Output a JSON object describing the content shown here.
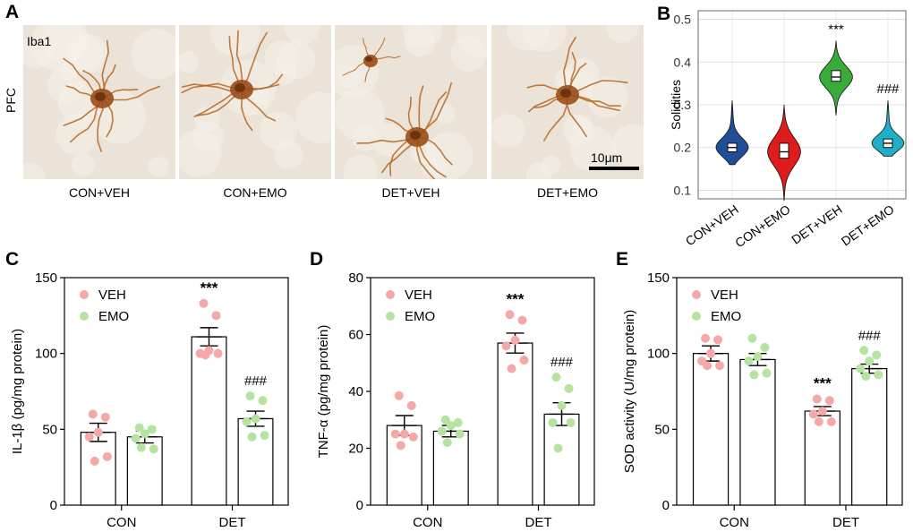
{
  "panelA": {
    "letter": "A",
    "stain": "Iba1",
    "region": "PFC",
    "scale_bar": "10μm",
    "images": [
      {
        "label": "CON+VEH"
      },
      {
        "label": "CON+EMO"
      },
      {
        "label": "DET+VEH"
      },
      {
        "label": "DET+EMO"
      }
    ]
  },
  "colors": {
    "veh": "#f4a9a8",
    "emo": "#b5e3a0",
    "violin": [
      "#1f4e96",
      "#e01b1b",
      "#3aab3a",
      "#1fb0c8"
    ],
    "stain": "#b5651d",
    "tissue": "#ebe3d8"
  },
  "chart_data": [
    {
      "panel": "B",
      "type": "violin",
      "title": "",
      "ylabel": "Solidities",
      "ylim": [
        0.08,
        0.52
      ],
      "yticks": [
        "0.1",
        "0.2",
        "0.3",
        "0.4",
        "0.5"
      ],
      "categories": [
        "CON+VEH",
        "CON+EMO",
        "DET+VEH",
        "DET+EMO"
      ],
      "min": [
        0.16,
        0.075,
        0.275,
        0.18
      ],
      "q1": [
        0.19,
        0.175,
        0.355,
        0.2
      ],
      "median": [
        0.2,
        0.19,
        0.365,
        0.21
      ],
      "q3": [
        0.21,
        0.21,
        0.38,
        0.22
      ],
      "max": [
        0.31,
        0.3,
        0.45,
        0.31
      ],
      "annotations": [
        "",
        "",
        "***",
        "###"
      ]
    },
    {
      "panel": "C",
      "type": "bar",
      "ylabel": "IL-1β (pg/mg protein)",
      "ylim": [
        0,
        150
      ],
      "yticks": [
        "0",
        "50",
        "100",
        "150"
      ],
      "categories": [
        "CON",
        "DET"
      ],
      "legend": [
        "VEH",
        "EMO"
      ],
      "series": [
        {
          "name": "VEH",
          "values": [
            48,
            111
          ],
          "sem": [
            6,
            6
          ],
          "points": [
            [
              60,
              58,
              48,
              45,
              32,
              29
            ],
            [
              133,
              125,
              102,
              100,
              100,
              99
            ]
          ]
        },
        {
          "name": "EMO",
          "values": [
            45,
            57
          ],
          "sem": [
            4,
            5
          ],
          "points": [
            [
              51,
              50,
              47,
              44,
              37,
              38
            ],
            [
              72,
              69,
              57,
              55,
              46,
              45
            ]
          ]
        }
      ],
      "annotations": [
        [
          "",
          ""
        ],
        [
          "***",
          "###"
        ]
      ]
    },
    {
      "panel": "D",
      "type": "bar",
      "ylabel": "TNF-α (pg/mg protein)",
      "ylim": [
        0,
        80
      ],
      "yticks": [
        "0",
        "20",
        "40",
        "60",
        "80"
      ],
      "categories": [
        "CON",
        "DET"
      ],
      "legend": [
        "VEH",
        "EMO"
      ],
      "series": [
        {
          "name": "VEH",
          "values": [
            28,
            57
          ],
          "sem": [
            3.5,
            3.5
          ],
          "points": [
            [
              38.5,
              35,
              25,
              25,
              24,
              21
            ],
            [
              67,
              65,
              58,
              56,
              51,
              48
            ]
          ]
        },
        {
          "name": "EMO",
          "values": [
            26,
            32
          ],
          "sem": [
            2,
            4
          ],
          "points": [
            [
              30,
              29,
              28,
              26,
              25,
              22
            ],
            [
              45,
              41,
              35,
              29,
              29,
              20
            ]
          ]
        }
      ],
      "annotations": [
        [
          "",
          ""
        ],
        [
          "***",
          "###"
        ]
      ]
    },
    {
      "panel": "E",
      "type": "bar",
      "ylabel": "SOD activity (U/mg protein)",
      "ylim": [
        0,
        150
      ],
      "yticks": [
        "0",
        "50",
        "100",
        "150"
      ],
      "categories": [
        "CON",
        "DET"
      ],
      "legend": [
        "VEH",
        "EMO"
      ],
      "series": [
        {
          "name": "VEH",
          "values": [
            100,
            62
          ],
          "sem": [
            5,
            3
          ],
          "points": [
            [
              110,
              109,
              100,
              95,
              92,
              92
            ],
            [
              70,
              69,
              62,
              60,
              55,
              55
            ]
          ]
        },
        {
          "name": "EMO",
          "values": [
            96,
            90
          ],
          "sem": [
            4,
            3
          ],
          "points": [
            [
              110,
              104,
              98,
              95,
              87,
              86
            ],
            [
              102,
              99,
              95,
              90,
              86,
              85
            ]
          ]
        }
      ],
      "annotations": [
        [
          "",
          ""
        ],
        [
          "***",
          "###"
        ]
      ]
    }
  ]
}
